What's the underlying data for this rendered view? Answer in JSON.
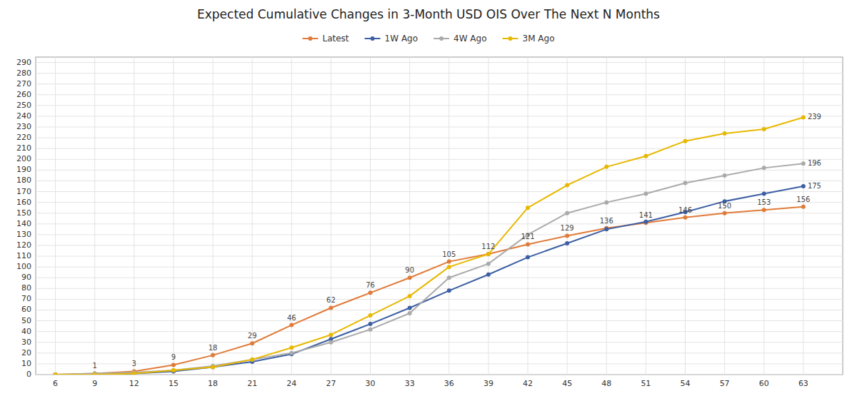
{
  "chart_data": {
    "type": "line",
    "title": "Expected Cumulative Changes in 3-Month USD OIS Over The Next N Months",
    "x": [
      6,
      9,
      12,
      15,
      18,
      21,
      24,
      27,
      30,
      33,
      36,
      39,
      42,
      45,
      48,
      51,
      54,
      57,
      60,
      63
    ],
    "xlim": [
      4.5,
      66
    ],
    "xticks": [
      6,
      9,
      12,
      15,
      18,
      21,
      24,
      27,
      30,
      33,
      36,
      39,
      42,
      45,
      48,
      51,
      54,
      57,
      60,
      63
    ],
    "ylim": [
      0,
      295
    ],
    "yticks": [
      0,
      10,
      20,
      30,
      40,
      50,
      60,
      70,
      80,
      90,
      100,
      110,
      120,
      130,
      140,
      150,
      160,
      170,
      180,
      190,
      200,
      210,
      220,
      230,
      240,
      250,
      260,
      270,
      280,
      290
    ],
    "grid": true,
    "legend": "top",
    "marker": "circle",
    "series": [
      {
        "name": "Latest",
        "color": "#e07b39",
        "values": [
          0,
          1,
          3,
          9,
          18,
          29,
          46,
          62,
          76,
          90,
          105,
          112,
          121,
          129,
          136,
          141,
          146,
          150,
          153,
          156
        ]
      },
      {
        "name": "1W Ago",
        "color": "#3d5fa3",
        "values": [
          0,
          0,
          1,
          3,
          7,
          12,
          19,
          33,
          47,
          62,
          78,
          93,
          109,
          122,
          135,
          142,
          151,
          161,
          168,
          175
        ]
      },
      {
        "name": "4W Ago",
        "color": "#aaaaaa",
        "values": [
          0,
          1,
          2,
          4,
          8,
          14,
          20,
          30,
          42,
          57,
          90,
          103,
          130,
          150,
          160,
          168,
          178,
          185,
          192,
          196
        ]
      },
      {
        "name": "3M Ago",
        "color": "#e8b800",
        "values": [
          0,
          0,
          1,
          4,
          7,
          14,
          25,
          37,
          55,
          73,
          100,
          112,
          155,
          176,
          193,
          203,
          217,
          224,
          228,
          239
        ]
      }
    ],
    "annotations": [
      {
        "text": "1",
        "x": 9,
        "y": 1,
        "position": "above"
      },
      {
        "text": "3",
        "x": 12,
        "y": 3,
        "position": "above"
      },
      {
        "text": "9",
        "x": 15,
        "y": 9,
        "position": "above"
      },
      {
        "text": "18",
        "x": 18,
        "y": 18,
        "position": "above"
      },
      {
        "text": "29",
        "x": 21,
        "y": 29,
        "position": "above"
      },
      {
        "text": "46",
        "x": 24,
        "y": 46,
        "position": "above"
      },
      {
        "text": "62",
        "x": 27,
        "y": 62,
        "position": "above"
      },
      {
        "text": "76",
        "x": 30,
        "y": 76,
        "position": "above"
      },
      {
        "text": "90",
        "x": 33,
        "y": 90,
        "position": "above"
      },
      {
        "text": "105",
        "x": 36,
        "y": 105,
        "position": "above"
      },
      {
        "text": "112",
        "x": 39,
        "y": 112,
        "position": "above"
      },
      {
        "text": "121",
        "x": 42,
        "y": 121,
        "position": "above"
      },
      {
        "text": "129",
        "x": 45,
        "y": 129,
        "position": "above"
      },
      {
        "text": "136",
        "x": 48,
        "y": 136,
        "position": "above"
      },
      {
        "text": "141",
        "x": 51,
        "y": 141,
        "position": "above"
      },
      {
        "text": "146",
        "x": 54,
        "y": 146,
        "position": "above"
      },
      {
        "text": "150",
        "x": 57,
        "y": 150,
        "position": "above"
      },
      {
        "text": "153",
        "x": 60,
        "y": 153,
        "position": "above"
      },
      {
        "text": "156",
        "x": 63,
        "y": 156,
        "position": "above"
      },
      {
        "text": "175",
        "x": 63,
        "y": 175,
        "position": "right"
      },
      {
        "text": "196",
        "x": 63,
        "y": 196,
        "position": "right"
      },
      {
        "text": "239",
        "x": 63,
        "y": 239,
        "position": "right"
      }
    ]
  }
}
